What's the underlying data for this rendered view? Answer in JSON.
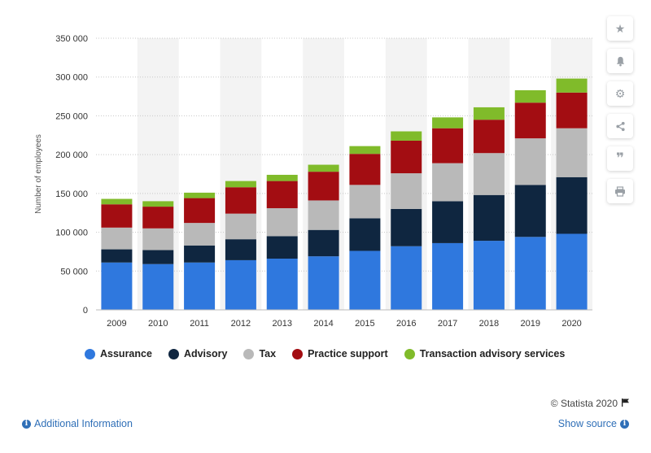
{
  "chart_data": {
    "type": "bar",
    "stacked": true,
    "categories": [
      "2009",
      "2010",
      "2011",
      "2012",
      "2013",
      "2014",
      "2015",
      "2016",
      "2017",
      "2018",
      "2019",
      "2020"
    ],
    "series": [
      {
        "name": "Assurance",
        "color": "#2f78de",
        "values": [
          61000,
          59000,
          61000,
          64000,
          66000,
          69000,
          76000,
          82000,
          86000,
          89000,
          94000,
          98000
        ]
      },
      {
        "name": "Advisory",
        "color": "#0f2640",
        "values": [
          17000,
          18000,
          22000,
          27000,
          29000,
          34000,
          42000,
          48000,
          54000,
          59000,
          67000,
          73000
        ]
      },
      {
        "name": "Tax",
        "color": "#b9b9b9",
        "values": [
          28000,
          28000,
          29000,
          33000,
          36000,
          38000,
          43000,
          46000,
          49000,
          54000,
          60000,
          63000
        ]
      },
      {
        "name": "Practice support",
        "color": "#a30d12",
        "values": [
          30000,
          28000,
          32000,
          34000,
          35000,
          37000,
          40000,
          42000,
          45000,
          43000,
          46000,
          46000
        ]
      },
      {
        "name": "Transaction advisory services",
        "color": "#80bb2a",
        "values": [
          7000,
          7000,
          7000,
          8000,
          8000,
          9000,
          10000,
          12000,
          14000,
          16000,
          16000,
          18000
        ]
      }
    ],
    "ylabel": "Number of employees",
    "xlabel": "",
    "ylim": [
      0,
      350000
    ],
    "yticks": [
      0,
      50000,
      100000,
      150000,
      200000,
      250000,
      300000,
      350000
    ],
    "ytick_labels": [
      "0",
      "50 000",
      "100 000",
      "150 000",
      "200 000",
      "250 000",
      "300 000",
      "350 000"
    ],
    "grid": true,
    "legend_position": "bottom"
  },
  "toolbar": {
    "icons": [
      "star-icon",
      "bell-icon",
      "gear-icon",
      "share-icon",
      "quote-icon",
      "print-icon"
    ]
  },
  "footer": {
    "credit": "© Statista 2020",
    "additional_info": "Additional Information",
    "show_source": "Show source"
  }
}
